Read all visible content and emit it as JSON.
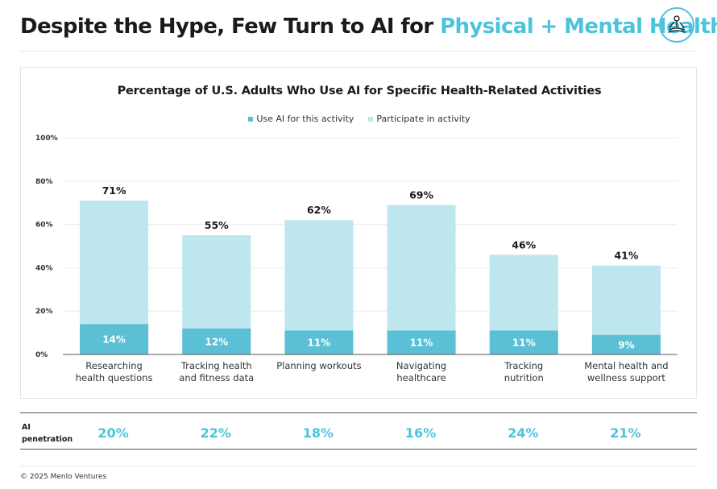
{
  "header": {
    "title_plain": "Despite the Hype, Few Turn to AI for ",
    "title_accent": "Physical + Mental Health",
    "logo_icon": "meditation-figure-icon"
  },
  "colors": {
    "accent": "#4cc3db",
    "use_ai": "#5bc0d6",
    "participate": "#bde6ee",
    "text": "#1a1a1a"
  },
  "chart_data": {
    "type": "bar",
    "title": "Percentage of U.S. Adults Who Use AI for Specific Health-Related Activities",
    "categories": [
      [
        "Researching",
        "health questions"
      ],
      [
        "Tracking health",
        "and fitness data"
      ],
      [
        "Planning workouts"
      ],
      [
        "Navigating",
        "healthcare"
      ],
      [
        "Tracking",
        "nutrition"
      ],
      [
        "Mental health and",
        "wellness support"
      ]
    ],
    "series": [
      {
        "name": "Use AI for this activity",
        "values": [
          14,
          12,
          11,
          11,
          11,
          9
        ]
      },
      {
        "name": "Participate in activity",
        "values": [
          71,
          55,
          62,
          69,
          46,
          41
        ]
      }
    ],
    "ylim": [
      0,
      100
    ],
    "yticks": [
      "0%",
      "20%",
      "40%",
      "60%",
      "80%",
      "100%"
    ],
    "grid": true,
    "legend_position": "top-center",
    "value_suffix": "%"
  },
  "ai_penetration": {
    "label": "AI\npenetration",
    "values": [
      "20%",
      "22%",
      "18%",
      "16%",
      "24%",
      "21%"
    ]
  },
  "footer": {
    "copyright": "© 2025 Menlo Ventures"
  }
}
